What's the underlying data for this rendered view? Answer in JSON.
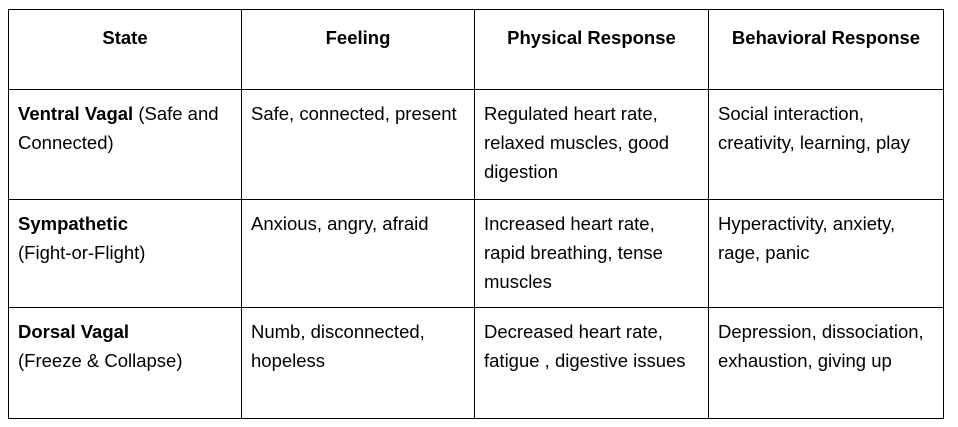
{
  "table": {
    "headers": [
      "State",
      "Feeling",
      "Physical Response",
      "Behavioral Response"
    ],
    "rows": [
      {
        "state_name": "Ventral Vagal",
        "state_detail": " (Safe and Connected)",
        "feeling": "Safe, connected, present",
        "physical": "Regulated heart rate, relaxed muscles, good digestion",
        "behavioral": "Social interaction, creativity, learning, play"
      },
      {
        "state_name": "Sympathetic",
        "state_detail": "(Fight-or-Flight)",
        "feeling": "Anxious, angry, afraid",
        "physical": "Increased heart rate, rapid breathing, tense muscles",
        "behavioral": "Hyperactivity, anxiety, rage, panic"
      },
      {
        "state_name": "Dorsal Vagal",
        "state_detail": "(Freeze & Collapse)",
        "feeling": "Numb, disconnected, hopeless",
        "physical": "Decreased heart rate, fatigue , digestive issues",
        "behavioral": "Depression, dissociation, exhaustion, giving up"
      }
    ]
  }
}
